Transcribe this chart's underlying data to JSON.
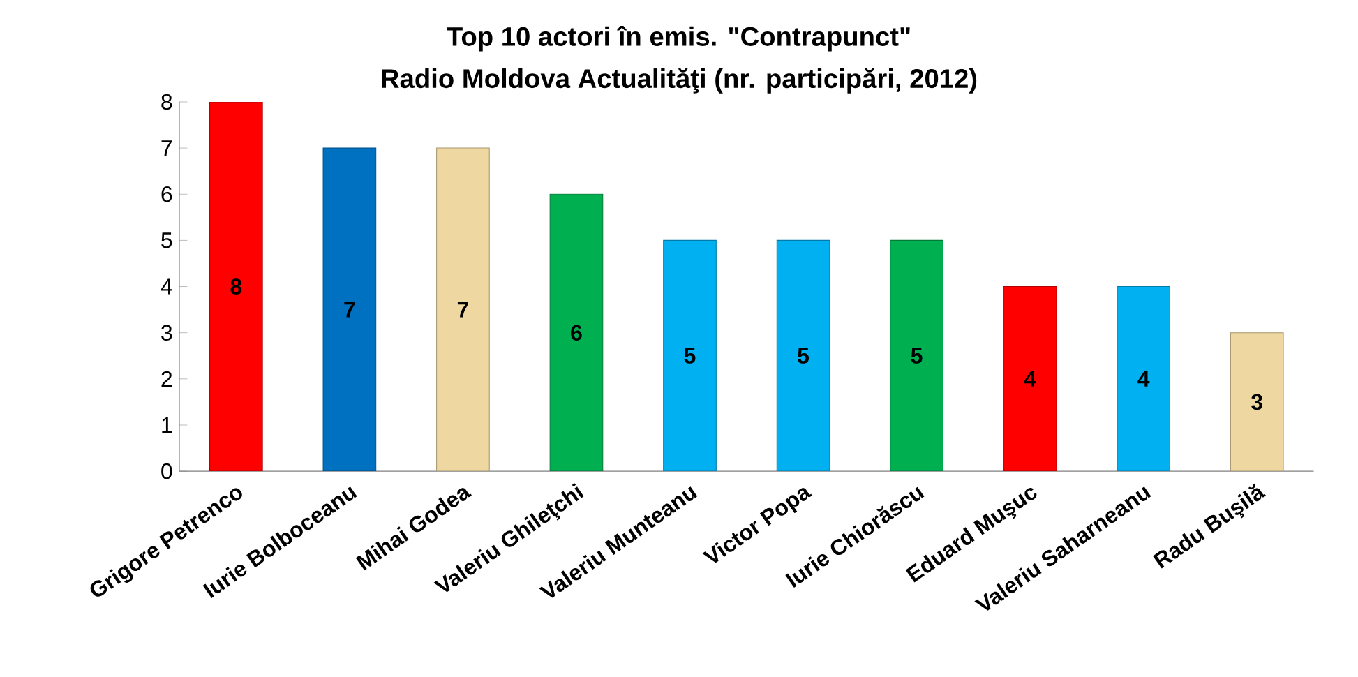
{
  "chart_data": {
    "type": "bar",
    "title": "Top 10 actori în emis. \"Contrapunct\"",
    "subtitle": "Radio Moldova Actualităţi (nr. participări, 2012)",
    "categories": [
      "Grigore Petrenco",
      "Iurie Bolboceanu",
      "Mihai Godea",
      "Valeriu Ghileţchi",
      "Valeriu Munteanu",
      "Victor Popa",
      "Iurie Chiorăscu",
      "Eduard Muşuc",
      "Valeriu Saharneanu",
      "Radu Buşilă"
    ],
    "values": [
      8,
      7,
      7,
      6,
      5,
      5,
      5,
      4,
      4,
      3
    ],
    "colors": [
      "#ff0000",
      "#0070c0",
      "#eed7a1",
      "#00b050",
      "#00b0f0",
      "#00b0f0",
      "#00b050",
      "#ff0000",
      "#00b0f0",
      "#eed7a1"
    ],
    "ylim": [
      0,
      8
    ],
    "yticks": [
      0,
      1,
      2,
      3,
      4,
      5,
      6,
      7,
      8
    ],
    "data_labels": true,
    "grid": false
  }
}
